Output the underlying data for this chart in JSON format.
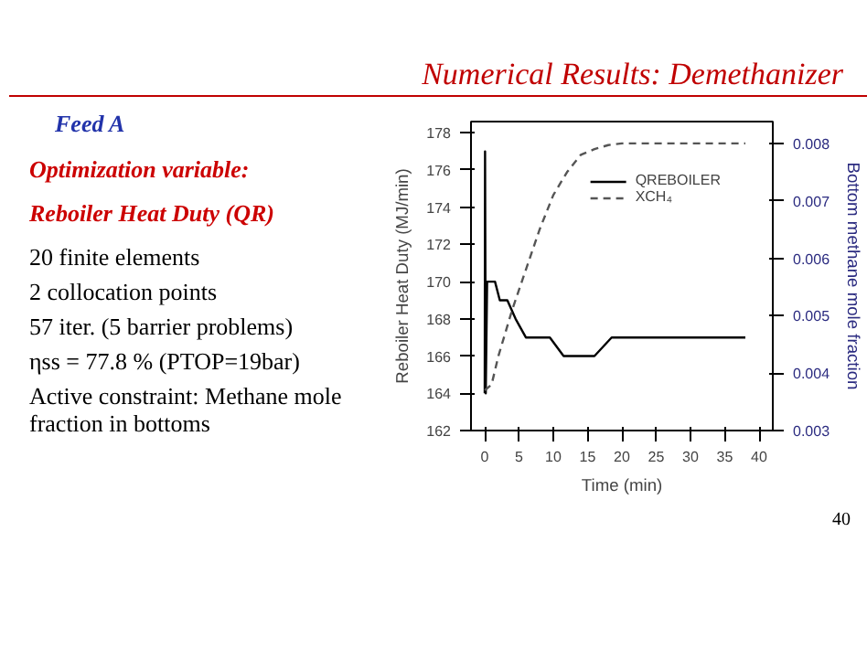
{
  "chart_data": {
    "type": "line",
    "title": "Numerical Results: Demethanizer",
    "xlabel": "Time (min)",
    "ylabel": "Reboiler Heat Duty (MJ/min)",
    "y2label": "Bottom methane mole fraction",
    "annotations": [
      "Feed A",
      "Optimization variable:",
      "Reboiler Heat Duty (QR)",
      "20 finite elements",
      "2 collocation points",
      "57 iter. (5 barrier problems)",
      "ηss = 77.8 %  (PTOP=19bar)",
      "Active constraint: Methane mole fraction in bottoms",
      "40"
    ],
    "xlim": [
      -2,
      42
    ],
    "xticks": [
      0,
      5,
      10,
      15,
      20,
      25,
      30,
      35,
      40
    ],
    "ylim": [
      162,
      178.6
    ],
    "yticks": [
      162,
      164,
      166,
      168,
      170,
      172,
      174,
      176,
      178
    ],
    "y2lim": [
      0.003,
      0.00838
    ],
    "y2ticks": [
      0.003,
      0.004,
      0.005,
      0.006,
      0.007,
      0.008
    ],
    "legend": "top right",
    "grid": false,
    "series": [
      {
        "name": "QREBOILER",
        "color": "#000000",
        "line_style": "solid",
        "x": [
          0,
          0.05,
          0.15,
          0.35,
          1.5,
          2.2,
          3.3,
          4.5,
          6,
          9.5,
          11.5,
          16,
          18.5,
          38
        ],
        "values": [
          164,
          177,
          164,
          170,
          170,
          169,
          169,
          168,
          167,
          167,
          166,
          166,
          167,
          167
        ]
      },
      {
        "name": "XCH₄",
        "color": "#555555",
        "line_style": "dashed",
        "axis": "y2",
        "x": [
          0,
          1,
          2,
          4,
          6,
          8,
          10,
          12,
          14,
          16,
          18,
          20,
          38
        ],
        "values": [
          0.0037,
          0.0038,
          0.0043,
          0.0051,
          0.0058,
          0.0065,
          0.0071,
          0.0075,
          0.0078,
          0.0079,
          0.00797,
          0.008,
          0.008
        ]
      }
    ]
  }
}
